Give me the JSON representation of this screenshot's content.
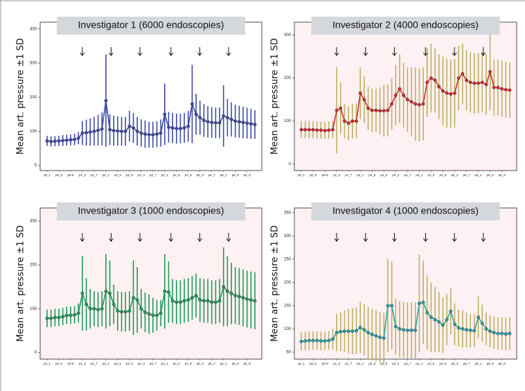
{
  "chart_data": [
    {
      "type": "line",
      "title": "Investigator 1 (6000 endoscopies)",
      "ylabel": "Mean art. pressure ±1 SD",
      "background": "#ffffff",
      "ylim": [
        -15,
        420
      ],
      "yticks": [
        0,
        100,
        200,
        300,
        400
      ],
      "categories": [
        "p0_1",
        null,
        null,
        "p0_5",
        null,
        null,
        "p0-9",
        null,
        null,
        "p1_3",
        null,
        null,
        "p1_7",
        null,
        null,
        "p2_1",
        null,
        null,
        "p2_5",
        null,
        null,
        "p2_9",
        null,
        null,
        "p3_3",
        null,
        null,
        "p3_7",
        null,
        null,
        "p4_1",
        null,
        null,
        "p4_5",
        null,
        null,
        "p4_9",
        null,
        null,
        "p5_3",
        null,
        null,
        "p5_7",
        null,
        null,
        "p6_1",
        null,
        null,
        "p6_5",
        null,
        null,
        "p6_9",
        null,
        null
      ],
      "series": [
        {
          "color": "#3d4aa6",
          "error_color": "#3d4aa6",
          "values": [
            72,
            70,
            71,
            72,
            73,
            74,
            75,
            76,
            80,
            95,
            96,
            98,
            100,
            103,
            107,
            190,
            105,
            102,
            101,
            100,
            100,
            115,
            110,
            100,
            95,
            92,
            90,
            90,
            92,
            95,
            150,
            112,
            110,
            108,
            108,
            110,
            115,
            180,
            150,
            140,
            132,
            128,
            126,
            125,
            125,
            145,
            140,
            135,
            130,
            128,
            126,
            124,
            122,
            120
          ],
          "errors": [
            15,
            15,
            15,
            15,
            16,
            16,
            16,
            17,
            18,
            35,
            38,
            40,
            42,
            45,
            48,
            135,
            45,
            44,
            43,
            42,
            42,
            45,
            44,
            42,
            40,
            40,
            38,
            38,
            38,
            40,
            90,
            45,
            44,
            44,
            43,
            44,
            45,
            115,
            60,
            50,
            48,
            46,
            45,
            45,
            45,
            90,
            55,
            50,
            48,
            47,
            46,
            45,
            44,
            42
          ]
        }
      ]
    },
    {
      "type": "line",
      "title": "Investigator 2 (4000 endoscopies)",
      "ylabel": "Mean art. pressure ±1 SD",
      "background": "#fdf1f3",
      "ylim": [
        -15,
        330
      ],
      "yticks": [
        0,
        100,
        200,
        300
      ],
      "categories": [
        "p0_1",
        null,
        null,
        "p0_5",
        null,
        null,
        "p0-9",
        null,
        null,
        "p1_3",
        null,
        null,
        "p1_7",
        null,
        null,
        "p2_1",
        null,
        null,
        "p2_5",
        null,
        null,
        "p2_9",
        null,
        null,
        "p3_3",
        null,
        null,
        "p3_7",
        null,
        null,
        "p4_1",
        null,
        null,
        "p4_5",
        null,
        null,
        "p4_9",
        null,
        null,
        "p5_3",
        null,
        null,
        "p5_7",
        null,
        null,
        "p6_1",
        null,
        null,
        "p6_5",
        null,
        null,
        "p6_9",
        null,
        null
      ],
      "series": [
        {
          "color": "#d12b2b",
          "error_color": "#bfae62",
          "values": [
            80,
            80,
            80,
            80,
            79,
            79,
            78,
            79,
            80,
            125,
            130,
            100,
            95,
            100,
            100,
            165,
            150,
            130,
            125,
            125,
            124,
            124,
            125,
            140,
            160,
            175,
            160,
            150,
            145,
            140,
            138,
            140,
            190,
            200,
            195,
            180,
            170,
            165,
            163,
            165,
            200,
            210,
            195,
            190,
            188,
            188,
            190,
            185,
            215,
            178,
            178,
            175,
            173,
            172
          ],
          "errors": [
            20,
            20,
            20,
            20,
            20,
            20,
            20,
            20,
            20,
            100,
            60,
            40,
            40,
            40,
            40,
            60,
            55,
            50,
            50,
            50,
            55,
            60,
            60,
            60,
            70,
            80,
            75,
            75,
            80,
            85,
            85,
            85,
            80,
            80,
            75,
            75,
            80,
            80,
            80,
            80,
            75,
            70,
            70,
            70,
            70,
            70,
            70,
            70,
            90,
            65,
            65,
            65,
            65,
            65
          ]
        }
      ]
    },
    {
      "type": "line",
      "title": "Investigator 3 (1000 endoscopies)",
      "ylabel": "Mean art. pressure ±1 SD",
      "background": "#fdf1f3",
      "ylim": [
        -15,
        330
      ],
      "yticks": [
        0,
        100,
        200,
        300
      ],
      "categories": [
        "p0_1",
        null,
        null,
        "p0_5",
        null,
        null,
        "p0-9",
        null,
        null,
        "p1_3",
        null,
        null,
        "p1_7",
        null,
        null,
        "p2_1",
        null,
        null,
        "p2_5",
        null,
        null,
        "p2_9",
        null,
        null,
        "p3_3",
        null,
        null,
        "p3_7",
        null,
        null,
        "p4_1",
        null,
        null,
        "p4_5",
        null,
        null,
        "p4_9",
        null,
        null,
        "p5_3",
        null,
        null,
        "p5_7",
        null,
        null,
        "p6_1",
        null,
        null,
        "p6_5",
        null,
        null,
        "p6_9",
        null,
        null
      ],
      "series": [
        {
          "color": "#1f9a58",
          "error_color": "#1f9a58",
          "values": [
            78,
            78,
            80,
            80,
            82,
            85,
            85,
            86,
            90,
            135,
            110,
            100,
            100,
            98,
            100,
            140,
            135,
            110,
            95,
            93,
            93,
            95,
            125,
            120,
            100,
            92,
            88,
            85,
            85,
            90,
            140,
            138,
            118,
            115,
            115,
            118,
            120,
            125,
            130,
            120,
            118,
            118,
            115,
            115,
            118,
            150,
            140,
            135,
            130,
            128,
            125,
            122,
            120,
            118
          ],
          "errors": [
            20,
            20,
            20,
            20,
            20,
            20,
            20,
            20,
            22,
            85,
            60,
            45,
            40,
            40,
            40,
            85,
            75,
            45,
            45,
            45,
            45,
            45,
            85,
            75,
            45,
            45,
            45,
            40,
            35,
            30,
            85,
            70,
            50,
            50,
            50,
            50,
            50,
            50,
            50,
            50,
            50,
            50,
            50,
            50,
            50,
            90,
            80,
            70,
            65,
            65,
            65,
            65,
            65,
            65
          ]
        }
      ]
    },
    {
      "type": "line",
      "title": "Investigator 4 (1000 endoscopies)",
      "ylabel": "Mean art. pressure ±1 SD",
      "background": "#fdf1f3",
      "ylim": [
        35,
        360
      ],
      "yticks": [
        50,
        100,
        150,
        200,
        250,
        300,
        350
      ],
      "categories": [
        "p0_1",
        null,
        null,
        "p0_5",
        null,
        null,
        "p0-9",
        null,
        null,
        "p1_3",
        null,
        null,
        "p1_7",
        null,
        null,
        "p2_1",
        null,
        null,
        "p2_5",
        null,
        null,
        "p2_9",
        null,
        null,
        "p3_3",
        null,
        null,
        "p3_7",
        null,
        null,
        "p4_1",
        null,
        null,
        "p4_5",
        null,
        null,
        "p4_9",
        null,
        null,
        "p5_3",
        null,
        null,
        "p5_7",
        null,
        null,
        "p6_1",
        null,
        null,
        "p6_5",
        null,
        null,
        "p6_9",
        null,
        null
      ],
      "series": [
        {
          "color": "#27a3a3",
          "error_color": "#bfae62",
          "values": [
            73,
            74,
            75,
            75,
            75,
            74,
            74,
            75,
            78,
            92,
            94,
            95,
            95,
            95,
            96,
            103,
            98,
            92,
            88,
            85,
            82,
            80,
            150,
            150,
            105,
            100,
            98,
            97,
            97,
            97,
            155,
            157,
            135,
            125,
            120,
            115,
            108,
            120,
            138,
            110,
            102,
            100,
            98,
            97,
            96,
            125,
            112,
            100,
            95,
            92,
            90,
            90,
            89,
            90
          ],
          "errors": [
            20,
            20,
            20,
            20,
            20,
            20,
            20,
            20,
            22,
            40,
            42,
            45,
            48,
            50,
            50,
            55,
            55,
            55,
            55,
            55,
            55,
            55,
            100,
            95,
            60,
            60,
            60,
            60,
            60,
            60,
            105,
            90,
            80,
            75,
            70,
            65,
            60,
            55,
            50,
            45,
            40,
            40,
            38,
            36,
            35,
            45,
            40,
            35,
            35,
            35,
            35,
            35,
            35,
            35
          ]
        }
      ]
    }
  ]
}
